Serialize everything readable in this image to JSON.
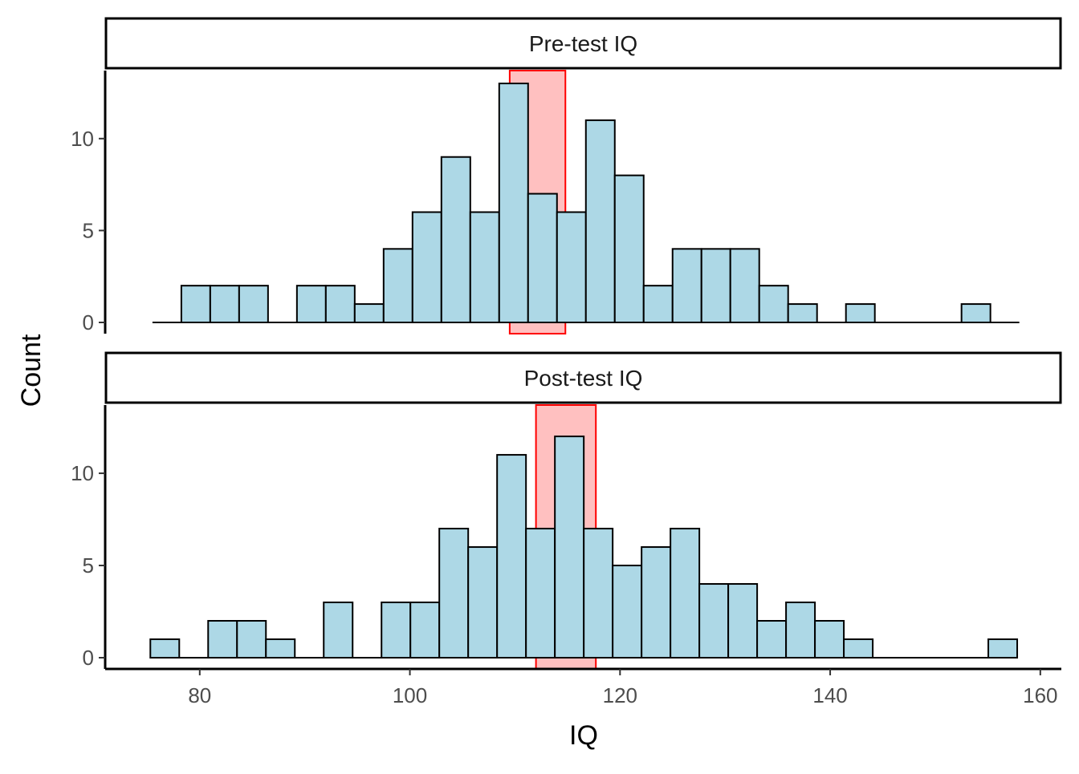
{
  "chart_data": {
    "type": "bar",
    "subtype": "faceted-histogram",
    "xlabel": "IQ",
    "ylabel": "Count",
    "xlim": [
      71,
      162
    ],
    "ylim": [
      0,
      13.7
    ],
    "x_ticks": [
      80,
      100,
      120,
      140,
      160
    ],
    "y_ticks": [
      0,
      5,
      10
    ],
    "bin_width": 2.75,
    "bar_fill": "#add8e6",
    "bar_stroke": "#000000",
    "highlight_fill": "#ffc0c0",
    "highlight_stroke": "#ff0000",
    "panels": [
      {
        "label": "Pre-test IQ",
        "bin_start": 75.5,
        "counts": [
          0,
          2,
          2,
          2,
          0,
          2,
          2,
          1,
          4,
          6,
          9,
          6,
          13,
          7,
          6,
          11,
          8,
          2,
          4,
          4,
          4,
          2,
          1,
          0,
          1,
          0,
          0,
          0,
          1,
          0
        ],
        "highlight": [
          109.5,
          114.8
        ]
      },
      {
        "label": "Post-test IQ",
        "bin_start": 75.3,
        "counts": [
          1,
          0,
          2,
          2,
          1,
          0,
          3,
          0,
          3,
          3,
          7,
          6,
          11,
          7,
          12,
          7,
          5,
          6,
          7,
          4,
          4,
          2,
          3,
          2,
          1,
          0,
          0,
          0,
          0,
          1
        ],
        "highlight": [
          112.0,
          117.7
        ]
      }
    ]
  }
}
